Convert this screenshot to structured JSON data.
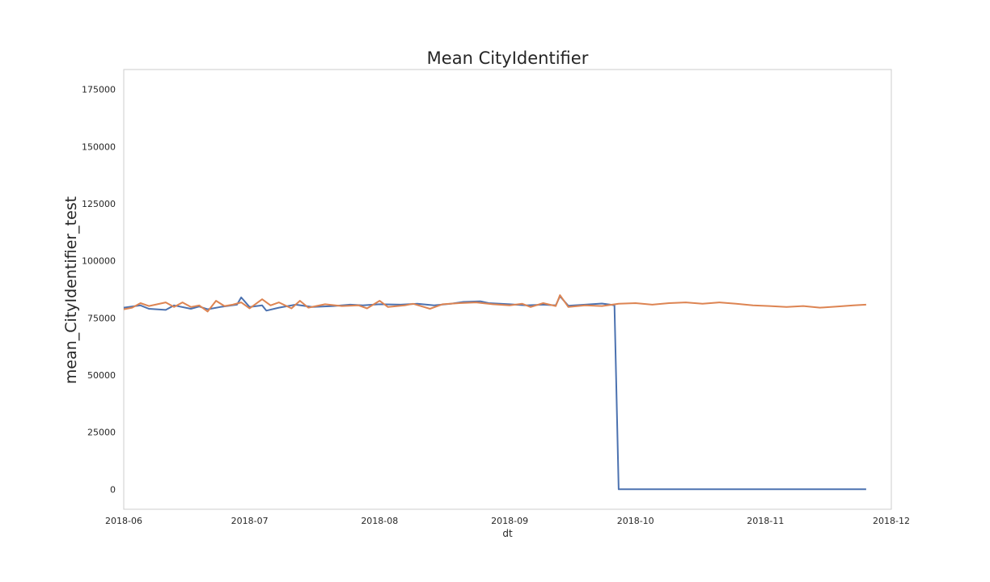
{
  "chart_data": {
    "type": "line",
    "title": "Mean CityIdentifier",
    "xlabel": "dt",
    "ylabel": "mean_CityIdentifier_test",
    "xlim": [
      "2018-06-01",
      "2018-12-01"
    ],
    "ylim": [
      -8750,
      183750
    ],
    "grid": false,
    "x_ticks": [
      "2018-06",
      "2018-07",
      "2018-08",
      "2018-09",
      "2018-10",
      "2018-11",
      "2018-12"
    ],
    "y_ticks": [
      "0",
      "25000",
      "50000",
      "75000",
      "100000",
      "125000",
      "150000",
      "175000"
    ],
    "series": [
      {
        "color": "#4c72b0",
        "points": [
          [
            "2018-06-01",
            79500
          ],
          [
            "2018-06-05",
            80500
          ],
          [
            "2018-06-07",
            79000
          ],
          [
            "2018-06-11",
            78500
          ],
          [
            "2018-06-13",
            80500
          ],
          [
            "2018-06-17",
            79000
          ],
          [
            "2018-06-19",
            80000
          ],
          [
            "2018-06-21",
            78800
          ],
          [
            "2018-06-24",
            79800
          ],
          [
            "2018-06-28",
            80800
          ],
          [
            "2018-06-29",
            84000
          ],
          [
            "2018-07-01",
            79800
          ],
          [
            "2018-07-04",
            80500
          ],
          [
            "2018-07-05",
            78200
          ],
          [
            "2018-07-08",
            79500
          ],
          [
            "2018-07-12",
            80800
          ],
          [
            "2018-07-16",
            79800
          ],
          [
            "2018-07-21",
            80200
          ],
          [
            "2018-07-25",
            80800
          ],
          [
            "2018-07-28",
            80500
          ],
          [
            "2018-08-01",
            81000
          ],
          [
            "2018-08-06",
            80800
          ],
          [
            "2018-08-10",
            81200
          ],
          [
            "2018-08-14",
            80500
          ],
          [
            "2018-08-18",
            81200
          ],
          [
            "2018-08-21",
            82000
          ],
          [
            "2018-08-25",
            82300
          ],
          [
            "2018-08-27",
            81500
          ],
          [
            "2018-09-01",
            81000
          ],
          [
            "2018-09-05",
            80500
          ],
          [
            "2018-09-09",
            80800
          ],
          [
            "2018-09-12",
            80500
          ],
          [
            "2018-09-13",
            84500
          ],
          [
            "2018-09-15",
            80300
          ],
          [
            "2018-09-19",
            80800
          ],
          [
            "2018-09-23",
            81300
          ],
          [
            "2018-09-25",
            80800
          ],
          [
            "2018-09-26",
            80500
          ],
          [
            "2018-09-27",
            0
          ],
          [
            "2018-11-25",
            0
          ]
        ]
      },
      {
        "color": "#dd8452",
        "points": [
          [
            "2018-06-01",
            78800
          ],
          [
            "2018-06-03",
            79500
          ],
          [
            "2018-06-05",
            81500
          ],
          [
            "2018-06-07",
            80200
          ],
          [
            "2018-06-09",
            81000
          ],
          [
            "2018-06-11",
            81800
          ],
          [
            "2018-06-13",
            79800
          ],
          [
            "2018-06-15",
            81800
          ],
          [
            "2018-06-17",
            79800
          ],
          [
            "2018-06-19",
            80500
          ],
          [
            "2018-06-21",
            77800
          ],
          [
            "2018-06-23",
            82500
          ],
          [
            "2018-06-25",
            80200
          ],
          [
            "2018-06-27",
            80800
          ],
          [
            "2018-06-29",
            81800
          ],
          [
            "2018-07-01",
            79200
          ],
          [
            "2018-07-04",
            83200
          ],
          [
            "2018-07-06",
            80500
          ],
          [
            "2018-07-08",
            81800
          ],
          [
            "2018-07-11",
            79200
          ],
          [
            "2018-07-13",
            82500
          ],
          [
            "2018-07-15",
            79500
          ],
          [
            "2018-07-19",
            81000
          ],
          [
            "2018-07-23",
            80200
          ],
          [
            "2018-07-27",
            80500
          ],
          [
            "2018-07-29",
            79200
          ],
          [
            "2018-08-01",
            82500
          ],
          [
            "2018-08-03",
            79800
          ],
          [
            "2018-08-07",
            80500
          ],
          [
            "2018-08-09",
            81200
          ],
          [
            "2018-08-13",
            79000
          ],
          [
            "2018-08-16",
            81000
          ],
          [
            "2018-08-20",
            81500
          ],
          [
            "2018-08-24",
            81800
          ],
          [
            "2018-08-28",
            81000
          ],
          [
            "2018-09-01",
            80500
          ],
          [
            "2018-09-04",
            81200
          ],
          [
            "2018-09-06",
            79800
          ],
          [
            "2018-09-09",
            81500
          ],
          [
            "2018-09-12",
            80200
          ],
          [
            "2018-09-13",
            85000
          ],
          [
            "2018-09-15",
            79800
          ],
          [
            "2018-09-19",
            80500
          ],
          [
            "2018-09-23",
            80200
          ],
          [
            "2018-09-27",
            81200
          ],
          [
            "2018-10-01",
            81500
          ],
          [
            "2018-10-05",
            80800
          ],
          [
            "2018-10-09",
            81500
          ],
          [
            "2018-10-13",
            81800
          ],
          [
            "2018-10-17",
            81200
          ],
          [
            "2018-10-21",
            81800
          ],
          [
            "2018-10-25",
            81200
          ],
          [
            "2018-10-29",
            80500
          ],
          [
            "2018-11-02",
            80200
          ],
          [
            "2018-11-06",
            79800
          ],
          [
            "2018-11-10",
            80200
          ],
          [
            "2018-11-14",
            79500
          ],
          [
            "2018-11-18",
            80000
          ],
          [
            "2018-11-22",
            80500
          ],
          [
            "2018-11-25",
            80800
          ]
        ]
      }
    ]
  }
}
